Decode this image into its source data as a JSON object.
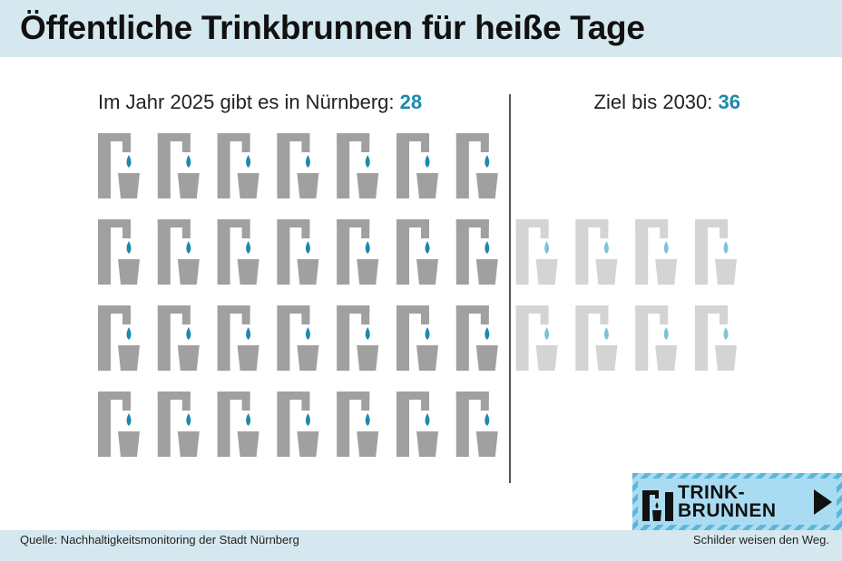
{
  "title": "Öffentliche Trinkbrunnen für heiße Tage",
  "labels": {
    "current_prefix": "Im Jahr 2025 gibt es in Nürnberg:",
    "current_value": "28",
    "target_prefix": "Ziel bis 2030:",
    "target_value": "36"
  },
  "chart_data": {
    "type": "pictogram",
    "series": [
      {
        "name": "Im Jahr 2025 gibt es in Nürnberg",
        "value": 28,
        "color": "#a0a0a0",
        "drop_color": "#1d89ad"
      },
      {
        "name": "Ziel bis 2030",
        "value": 36,
        "color": "#d4d4d4",
        "drop_color": "#7ec1d8"
      }
    ],
    "unit_icon": "drinking-fountain-icon",
    "icons_per_row_current": 7,
    "icons_per_row_additional": 4
  },
  "sign": {
    "line1": "TRINK-",
    "line2": "BRUNNEN",
    "icon": "drinking-fountain-icon",
    "arrow_icon": "triangle-right-icon",
    "colors": {
      "stripe_dark": "#5bb6dd",
      "stripe_light": "#a8dcf2"
    }
  },
  "footer": {
    "source": "Quelle: Nachhaltigkeitsmonitoring der Stadt Nürnberg",
    "tagline": "Schilder weisen den Weg."
  }
}
